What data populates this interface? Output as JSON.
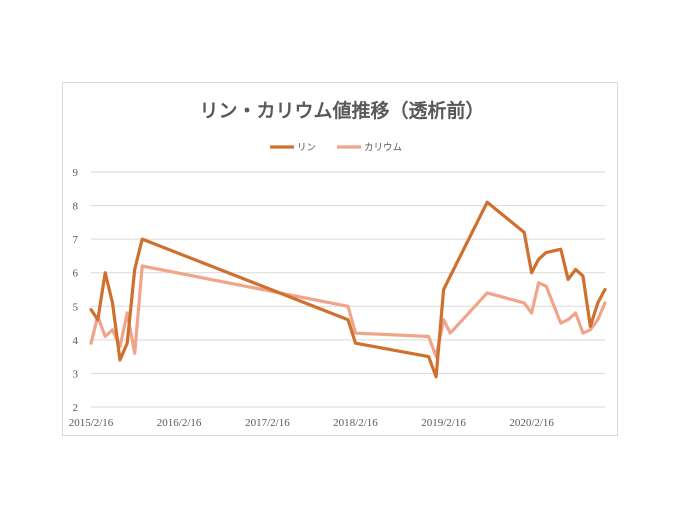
{
  "chart_data": {
    "type": "line",
    "title": "リン・カリウム値推移（透析前）",
    "xlabel": "",
    "ylabel": "",
    "ylim": [
      2,
      9
    ],
    "yticks": [
      2,
      3,
      4,
      5,
      6,
      7,
      8,
      9
    ],
    "grid": true,
    "legend_position": "top",
    "x_tick_labels": [
      "2015/2/16",
      "2016/2/16",
      "2017/2/16",
      "2018/2/16",
      "2019/2/16",
      "2020/2/16"
    ],
    "series": [
      {
        "name": "リン",
        "color": "#d0702f",
        "points": [
          [
            "2015/2/16",
            4.9
          ],
          [
            "2015/3/16",
            4.6
          ],
          [
            "2015/4/16",
            6.0
          ],
          [
            "2015/5/16",
            5.1
          ],
          [
            "2015/6/16",
            3.4
          ],
          [
            "2015/7/16",
            3.9
          ],
          [
            "2015/8/16",
            6.1
          ],
          [
            "2015/9/16",
            7.0
          ],
          [
            "2018/1/16",
            4.6
          ],
          [
            "2018/2/16",
            3.9
          ],
          [
            "2018/12/16",
            3.5
          ],
          [
            "2019/1/16",
            2.9
          ],
          [
            "2019/2/16",
            5.5
          ],
          [
            "2019/8/16",
            8.1
          ],
          [
            "2020/1/16",
            7.2
          ],
          [
            "2020/2/16",
            6.0
          ],
          [
            "2020/3/16",
            6.4
          ],
          [
            "2020/4/16",
            6.6
          ],
          [
            "2020/6/16",
            6.7
          ],
          [
            "2020/7/16",
            5.8
          ],
          [
            "2020/8/16",
            6.1
          ],
          [
            "2020/9/16",
            5.9
          ],
          [
            "2020/10/16",
            4.4
          ],
          [
            "2020/11/16",
            5.1
          ],
          [
            "2020/12/16",
            5.5
          ]
        ]
      },
      {
        "name": "カリウム",
        "color": "#f0a58a",
        "points": [
          [
            "2015/2/16",
            3.9
          ],
          [
            "2015/3/16",
            4.7
          ],
          [
            "2015/4/16",
            4.1
          ],
          [
            "2015/5/16",
            4.3
          ],
          [
            "2015/6/16",
            3.8
          ],
          [
            "2015/7/16",
            4.8
          ],
          [
            "2015/8/16",
            3.6
          ],
          [
            "2015/9/16",
            6.2
          ],
          [
            "2018/1/16",
            5.0
          ],
          [
            "2018/2/16",
            4.2
          ],
          [
            "2018/12/16",
            4.1
          ],
          [
            "2019/1/16",
            3.5
          ],
          [
            "2019/2/16",
            4.6
          ],
          [
            "2019/3/16",
            4.2
          ],
          [
            "2019/8/16",
            5.4
          ],
          [
            "2020/1/16",
            5.1
          ],
          [
            "2020/2/16",
            4.8
          ],
          [
            "2020/3/16",
            5.7
          ],
          [
            "2020/4/16",
            5.6
          ],
          [
            "2020/6/16",
            4.5
          ],
          [
            "2020/7/16",
            4.6
          ],
          [
            "2020/8/16",
            4.8
          ],
          [
            "2020/9/16",
            4.2
          ],
          [
            "2020/10/16",
            4.3
          ],
          [
            "2020/11/16",
            4.6
          ],
          [
            "2020/12/16",
            5.1
          ]
        ]
      }
    ]
  }
}
